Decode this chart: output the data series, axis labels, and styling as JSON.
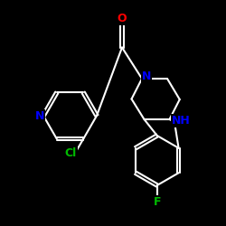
{
  "background_color": "#000000",
  "bond_color": "#ffffff",
  "atom_colors": {
    "O": "#ff0000",
    "N": "#0000ff",
    "Cl": "#00bb00",
    "F": "#00bb00",
    "NH": "#0000ff"
  },
  "figsize": [
    2.5,
    2.5
  ],
  "dpi": 100,
  "lw": 1.5,
  "fontsize": 9
}
